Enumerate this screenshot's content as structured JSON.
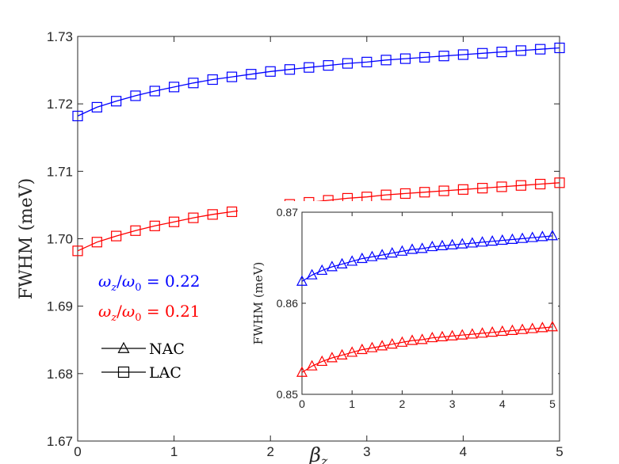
{
  "chart_data": [
    {
      "type": "line",
      "role": "main",
      "xlabel_symbol": "β",
      "xlabel_sub": "z",
      "ylabel": "FWHM (meV)",
      "xlim": [
        0,
        5
      ],
      "ylim": [
        1.67,
        1.73
      ],
      "xticks": [
        "0",
        "1",
        "2",
        "3",
        "4",
        "5"
      ],
      "yticks": [
        "1.67",
        "1.68",
        "1.69",
        "1.70",
        "1.71",
        "1.72",
        "1.73"
      ],
      "grid": false,
      "marker": "square",
      "series": [
        {
          "label_omega": "ω",
          "label_sub1": "z",
          "label_sub2": "0",
          "label_eq": " = 0.22",
          "color": "#0000ff",
          "x": [
            0,
            0.2,
            0.4,
            0.6,
            0.8,
            1.0,
            1.2,
            1.4,
            1.6,
            1.8,
            2.0,
            2.2,
            2.4,
            2.6,
            2.8,
            3.0,
            3.2,
            3.4,
            3.6,
            3.8,
            4.0,
            4.2,
            4.4,
            4.6,
            4.8,
            5.0
          ],
          "y": [
            1.7182,
            1.7195,
            1.7204,
            1.7212,
            1.7219,
            1.7225,
            1.7231,
            1.7236,
            1.724,
            1.7244,
            1.7248,
            1.7251,
            1.7254,
            1.7257,
            1.726,
            1.7262,
            1.7265,
            1.7267,
            1.7269,
            1.7271,
            1.7273,
            1.7275,
            1.7277,
            1.7279,
            1.7281,
            1.7283
          ]
        },
        {
          "label_omega": "ω",
          "label_sub1": "z",
          "label_sub2": "0",
          "label_eq": " = 0.21",
          "color": "#ff0000",
          "x": [
            0,
            0.2,
            0.4,
            0.6,
            0.8,
            1.0,
            1.2,
            1.4,
            1.6,
            1.8,
            2.0,
            2.2,
            2.4,
            2.6,
            2.8,
            3.0,
            3.2,
            3.4,
            3.6,
            3.8,
            4.0,
            4.2,
            4.4,
            4.6,
            4.8,
            5.0
          ],
          "y": [
            1.6982,
            1.6995,
            1.7004,
            1.7012,
            1.7019,
            1.7025,
            1.7031,
            1.7036,
            1.704,
            1.7044,
            1.7048,
            1.7051,
            1.7054,
            1.7057,
            1.706,
            1.7062,
            1.7065,
            1.7067,
            1.7069,
            1.7071,
            1.7073,
            1.7075,
            1.7077,
            1.7079,
            1.7081,
            1.7083
          ]
        }
      ],
      "marker_legend": [
        {
          "marker": "triangle",
          "label": "NAC"
        },
        {
          "marker": "square",
          "label": "LAC"
        }
      ]
    },
    {
      "type": "line",
      "role": "inset",
      "ylabel": "FWHM (meV)",
      "xlim": [
        0,
        5
      ],
      "ylim": [
        0.85,
        0.87
      ],
      "xticks": [
        "0",
        "1",
        "2",
        "3",
        "4",
        "5"
      ],
      "yticks": [
        "0.85",
        "0.86",
        "0.87"
      ],
      "marker": "triangle",
      "series": [
        {
          "color": "#0000ff",
          "x": [
            0,
            0.2,
            0.4,
            0.6,
            0.8,
            1.0,
            1.2,
            1.4,
            1.6,
            1.8,
            2.0,
            2.2,
            2.4,
            2.6,
            2.8,
            3.0,
            3.2,
            3.4,
            3.6,
            3.8,
            4.0,
            4.2,
            4.4,
            4.6,
            4.8,
            5.0
          ],
          "y": [
            0.8624,
            0.8631,
            0.8636,
            0.864,
            0.8643,
            0.8646,
            0.8649,
            0.8651,
            0.8653,
            0.8655,
            0.8657,
            0.8659,
            0.866,
            0.8662,
            0.8663,
            0.8664,
            0.8665,
            0.8666,
            0.8667,
            0.8668,
            0.8669,
            0.867,
            0.8671,
            0.8672,
            0.8673,
            0.8674
          ]
        },
        {
          "color": "#ff0000",
          "x": [
            0,
            0.2,
            0.4,
            0.6,
            0.8,
            1.0,
            1.2,
            1.4,
            1.6,
            1.8,
            2.0,
            2.2,
            2.4,
            2.6,
            2.8,
            3.0,
            3.2,
            3.4,
            3.6,
            3.8,
            4.0,
            4.2,
            4.4,
            4.6,
            4.8,
            5.0
          ],
          "y": [
            0.8524,
            0.8531,
            0.8536,
            0.854,
            0.8543,
            0.8546,
            0.8549,
            0.8551,
            0.8553,
            0.8555,
            0.8557,
            0.8559,
            0.856,
            0.8562,
            0.8563,
            0.8564,
            0.8565,
            0.8566,
            0.8567,
            0.8568,
            0.8569,
            0.857,
            0.8571,
            0.8572,
            0.8573,
            0.8574
          ]
        }
      ]
    }
  ]
}
